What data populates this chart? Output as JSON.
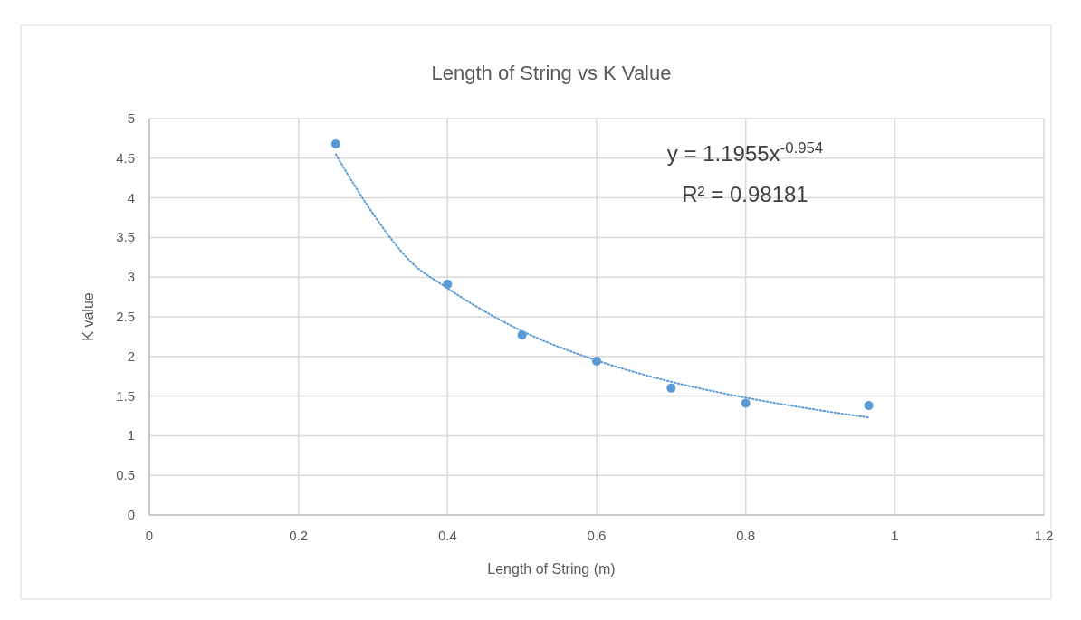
{
  "chart_data": {
    "type": "scatter",
    "title": "Length of String vs K Value",
    "xlabel": "Length of String (m)",
    "ylabel": "K value",
    "xlim": [
      0,
      1.2
    ],
    "xticks": [
      0,
      0.2,
      0.4,
      0.6,
      0.8,
      1,
      1.2
    ],
    "ylim": [
      0,
      5
    ],
    "yticks": [
      0,
      0.5,
      1,
      1.5,
      2,
      2.5,
      3,
      3.5,
      4,
      4.5,
      5
    ],
    "grid": true,
    "series": [
      {
        "color": "#5b9bd5",
        "marker": "circle",
        "x": [
          0.25,
          0.4,
          0.5,
          0.6,
          0.7,
          0.8,
          0.965
        ],
        "values": [
          4.68,
          2.91,
          2.27,
          1.94,
          1.6,
          1.41,
          1.38
        ]
      },
      {
        "type": "line",
        "color": "#5b9bd5",
        "marker": "none",
        "line_style": "dotted",
        "x": [
          0.25,
          0.3,
          0.35,
          0.4,
          0.5,
          0.6,
          0.7,
          0.8,
          0.9,
          0.965
        ],
        "values": [
          4.55,
          3.8,
          3.2,
          2.86,
          2.32,
          1.95,
          1.68,
          1.48,
          1.32,
          1.23
        ]
      }
    ],
    "annotations": [
      "y = 1.1955x$^{-0.954}$",
      "R² = 0.98181"
    ]
  }
}
